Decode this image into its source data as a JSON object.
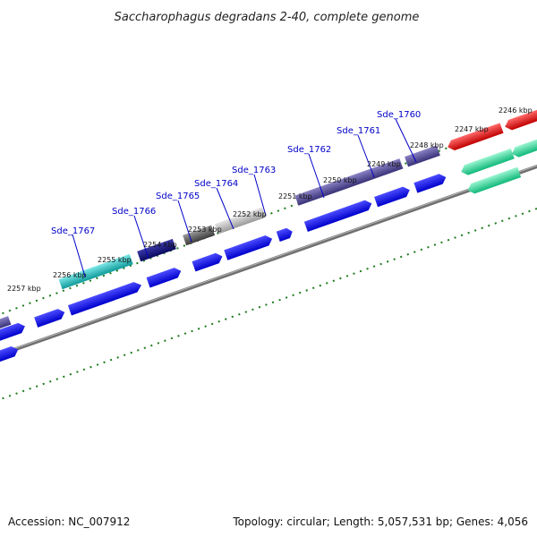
{
  "title": "Saccharophagus degradans 2-40, complete genome",
  "footer": {
    "accession": "Accession: NC_007912",
    "summary": "Topology: circular; Length: 5,057,531 bp; Genes: 4,056"
  },
  "colors": {
    "backbone": "#808080",
    "tick": "#1e7b1e",
    "label": "#0000c8",
    "cds_forward": "#0000ee",
    "cds_reverse_blue": "#0000ee",
    "feature_purple": "#4b4190",
    "feature_navy": "#0f0f78",
    "feature_cyan": "#15b8b8",
    "feature_darkgray": "#5a5a5a",
    "feature_lightgray": "#b4b4b4",
    "feature_red": "#e00000",
    "feature_teal": "#18d88e"
  },
  "kbp_labels": [
    "2246 kbp",
    "2247 kbp",
    "2248 kbp",
    "2249 kbp",
    "2250 kbp",
    "2251 kbp",
    "2252 kbp",
    "2253 kbp",
    "2254 kbp",
    "2255 kbp",
    "2256 kbp",
    "2257 kbp"
  ],
  "gene_labels": [
    "Sde_1760",
    "Sde_1761",
    "Sde_1762",
    "Sde_1763",
    "Sde_1764",
    "Sde_1765",
    "Sde_1766",
    "Sde_1767"
  ]
}
